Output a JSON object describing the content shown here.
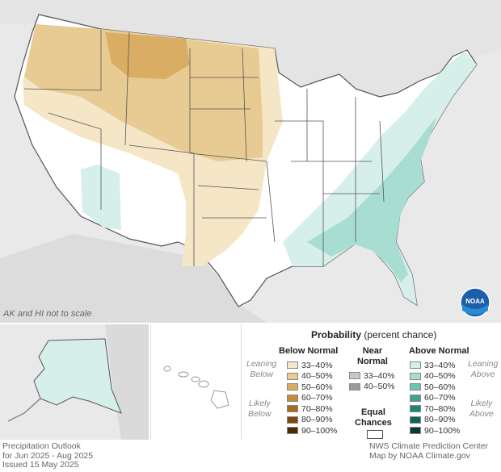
{
  "map": {
    "scale_note": "AK and HI not to scale",
    "logo_text": "NOAA",
    "colors": {
      "land": "#ffffff",
      "background": "#e9e9e9",
      "below_33_40": "#f5e6c6",
      "below_40_50": "#e8cb93",
      "below_50_60": "#d9ad63",
      "above_33_40": "#d7efea",
      "above_40_50": "#a8ddd1",
      "state_border": "#555555"
    }
  },
  "legend": {
    "title_bold": "Probability",
    "title_rest": "(percent chance)",
    "below_header": "Below Normal",
    "near_header_1": "Near",
    "near_header_2": "Normal",
    "above_header": "Above Normal",
    "leaning_below_1": "Leaning",
    "leaning_below_2": "Below",
    "likely_below_1": "Likely",
    "likely_below_2": "Below",
    "leaning_above_1": "Leaning",
    "leaning_above_2": "Above",
    "likely_above_1": "Likely",
    "likely_above_2": "Above",
    "equal_1": "Equal",
    "equal_2": "Chances",
    "below_items": [
      {
        "label": "33–40%",
        "color": "#f5e6c6"
      },
      {
        "label": "40–50%",
        "color": "#e8cb93"
      },
      {
        "label": "50–60%",
        "color": "#d9ad63"
      },
      {
        "label": "60–70%",
        "color": "#c98b33"
      },
      {
        "label": "70–80%",
        "color": "#a86a1c"
      },
      {
        "label": "80–90%",
        "color": "#7d4a10"
      },
      {
        "label": "90–100%",
        "color": "#4e2a05"
      }
    ],
    "near_items": [
      {
        "label": "33–40%",
        "color": "#c8c8c8"
      },
      {
        "label": "40–50%",
        "color": "#9a9a9a"
      }
    ],
    "above_items": [
      {
        "label": "33–40%",
        "color": "#d7efea"
      },
      {
        "label": "40–50%",
        "color": "#a8ddd1"
      },
      {
        "label": "50–60%",
        "color": "#6cc3b1"
      },
      {
        "label": "60–70%",
        "color": "#3ea595"
      },
      {
        "label": "70–80%",
        "color": "#1f8676"
      },
      {
        "label": "80–90%",
        "color": "#0e6456"
      },
      {
        "label": "90–100%",
        "color": "#053b31"
      }
    ]
  },
  "footer": {
    "left_1": "Precipitation Outlook",
    "left_2": "for Jun 2025 - Aug 2025",
    "left_3": "Issued 15 May 2025",
    "right_1": "NWS Climate Prediction Center",
    "right_2": "Map by NOAA Climate.gov"
  }
}
